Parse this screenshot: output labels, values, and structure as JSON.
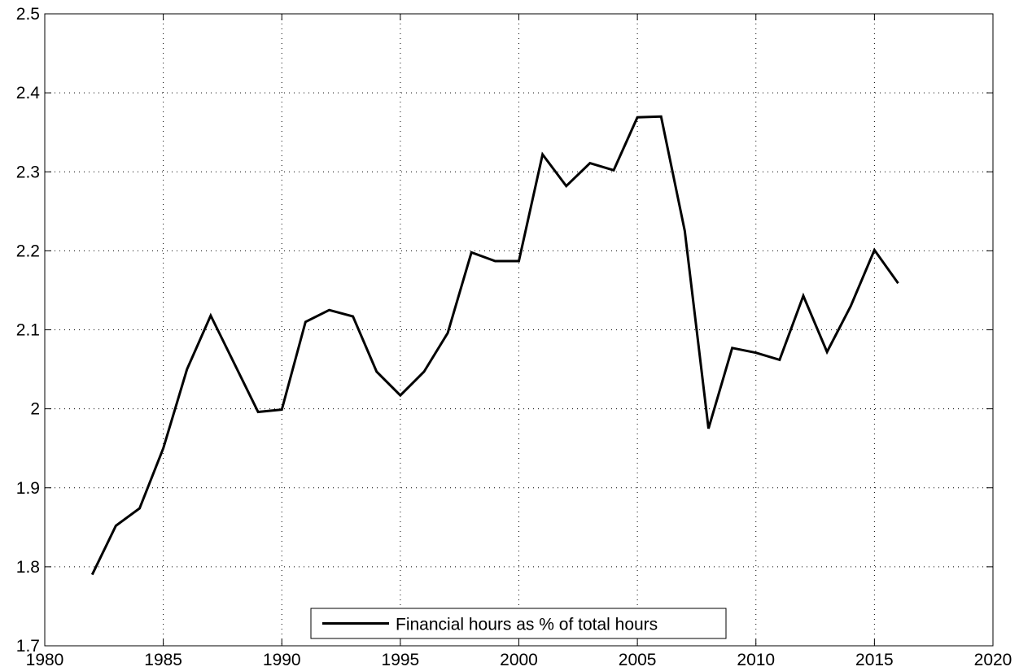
{
  "chart_data": {
    "type": "line",
    "x": [
      1982,
      1983,
      1984,
      1985,
      1986,
      1987,
      1988,
      1989,
      1990,
      1991,
      1992,
      1993,
      1994,
      1995,
      1996,
      1997,
      1998,
      1999,
      2000,
      2001,
      2002,
      2003,
      2004,
      2005,
      2006,
      2007,
      2008,
      2009,
      2010,
      2011,
      2012,
      2013,
      2014,
      2015,
      2016
    ],
    "series": [
      {
        "name": "Financial hours as % of total hours",
        "color": "#000000",
        "values": [
          1.79,
          1.852,
          1.874,
          1.95,
          2.05,
          2.118,
          2.057,
          1.996,
          1.999,
          2.11,
          2.125,
          2.117,
          2.047,
          2.017,
          2.047,
          2.096,
          2.198,
          2.187,
          2.187,
          2.322,
          2.282,
          2.311,
          2.302,
          2.369,
          2.37,
          2.225,
          1.975,
          2.077,
          2.071,
          2.062,
          2.143,
          2.072,
          2.13,
          2.201,
          2.159
        ]
      }
    ],
    "xlim": [
      1980,
      2020
    ],
    "xticks": [
      1980,
      1985,
      1990,
      1995,
      2000,
      2005,
      2010,
      2015,
      2020
    ],
    "ylim": [
      1.7,
      2.5
    ],
    "yticks": [
      1.7,
      1.8,
      1.9,
      2,
      2.1,
      2.2,
      2.3,
      2.4,
      2.5
    ],
    "grid": true,
    "legend": "bottom"
  }
}
